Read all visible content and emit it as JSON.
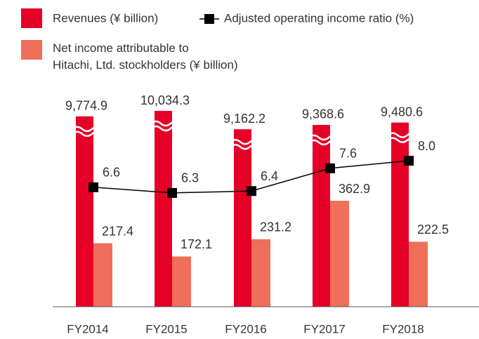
{
  "chart_data": {
    "type": "bar",
    "categories": [
      "FY2014",
      "FY2015",
      "FY2016",
      "FY2017",
      "FY2018"
    ],
    "series": [
      {
        "name": "Revenues (¥ billion)",
        "color": "#e60027",
        "broken_axis": true,
        "values": [
          9774.9,
          10034.3,
          9162.2,
          9368.6,
          9480.6
        ],
        "value_labels": [
          "9,774.9",
          "10,034.3",
          "9,162.2",
          "9,368.6",
          "9,480.6"
        ]
      },
      {
        "name": "Net income attributable to Hitachi, Ltd. stockholders (¥ billion)",
        "color": "#ef6f5a",
        "values": [
          217.4,
          172.1,
          231.2,
          362.9,
          222.5
        ]
      },
      {
        "name": "Adjusted operating income ratio (%)",
        "color": "#000000",
        "type": "line",
        "values": [
          6.6,
          6.3,
          6.4,
          7.6,
          8.0
        ],
        "value_labels": [
          "6.6",
          "6.3",
          "6.4",
          "7.6",
          "8.0"
        ]
      }
    ]
  }
}
